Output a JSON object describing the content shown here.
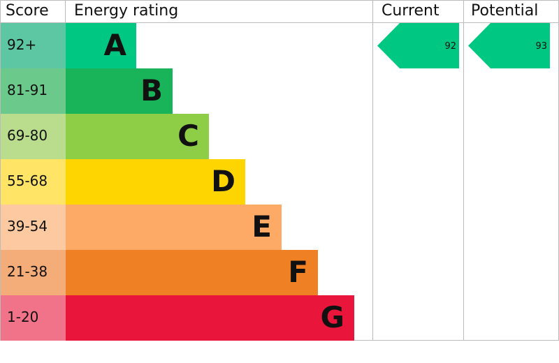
{
  "chart_data": {
    "type": "epc",
    "headers": {
      "score": "Score",
      "rating": "Energy rating",
      "current": "Current",
      "potential": "Potential"
    },
    "bands": [
      {
        "score": "92+",
        "letter": "A",
        "color": "#00c781",
        "score_color": "#5cc7a2"
      },
      {
        "score": "81-91",
        "letter": "B",
        "color": "#19b459",
        "score_color": "#6cc98c"
      },
      {
        "score": "69-80",
        "letter": "C",
        "color": "#8dce46",
        "score_color": "#b9dd8d"
      },
      {
        "score": "55-68",
        "letter": "D",
        "color": "#ffd500",
        "score_color": "#ffe466"
      },
      {
        "score": "39-54",
        "letter": "E",
        "color": "#fcaa65",
        "score_color": "#fdc9a1"
      },
      {
        "score": "21-38",
        "letter": "F",
        "color": "#ef8023",
        "score_color": "#f4ac78"
      },
      {
        "score": "1-20",
        "letter": "G",
        "color": "#e9153b",
        "score_color": "#f07389"
      }
    ],
    "current": 92,
    "potential": 93
  }
}
